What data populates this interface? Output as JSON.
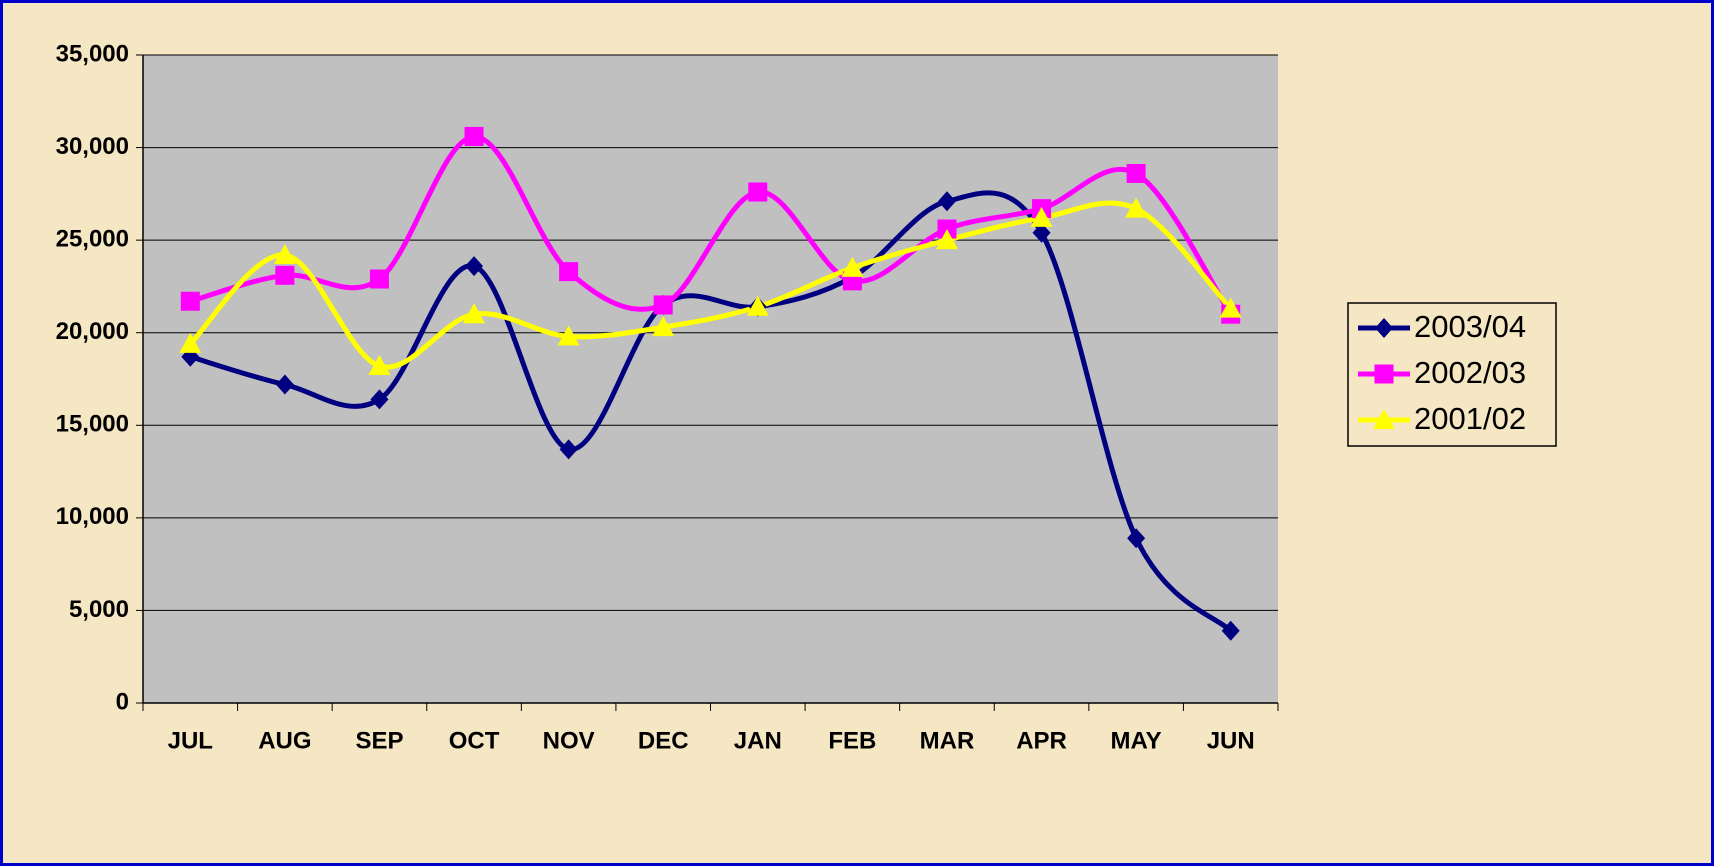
{
  "chart_data": {
    "type": "line",
    "smooth": true,
    "grid": true,
    "legend": "right",
    "plot_background": "#c0c0c0",
    "categories": [
      "JUL",
      "AUG",
      "SEP",
      "OCT",
      "NOV",
      "DEC",
      "JAN",
      "FEB",
      "MAR",
      "APR",
      "MAY",
      "JUN"
    ],
    "series": [
      {
        "name": "2003/04",
        "color": "#000080",
        "marker": "diamond",
        "values": [
          18700,
          17200,
          16400,
          23600,
          13700,
          21500,
          21400,
          23000,
          27100,
          25400,
          8900,
          3900
        ]
      },
      {
        "name": "2002/03",
        "color": "#ff00ff",
        "marker": "square",
        "values": [
          21700,
          23100,
          22900,
          30600,
          23300,
          21500,
          27600,
          22800,
          25600,
          26700,
          28600,
          21000
        ]
      },
      {
        "name": "2001/02",
        "color": "#ffff00",
        "marker": "triangle",
        "values": [
          19400,
          24200,
          18200,
          21000,
          19800,
          20300,
          21400,
          23500,
          25000,
          26200,
          26700,
          21300
        ]
      }
    ],
    "ylim": [
      0,
      35000
    ],
    "yticks": [
      0,
      {
        "value": 5000,
        "label": "5,000"
      },
      {
        "value": 10000,
        "label": "10,000"
      },
      {
        "value": 15000,
        "label": "15,000"
      },
      {
        "value": 20000,
        "label": "20,000"
      },
      {
        "value": 25000,
        "label": "25,000"
      },
      {
        "value": 30000,
        "label": "30,000"
      },
      {
        "value": 35000,
        "label": "35,000"
      }
    ]
  }
}
